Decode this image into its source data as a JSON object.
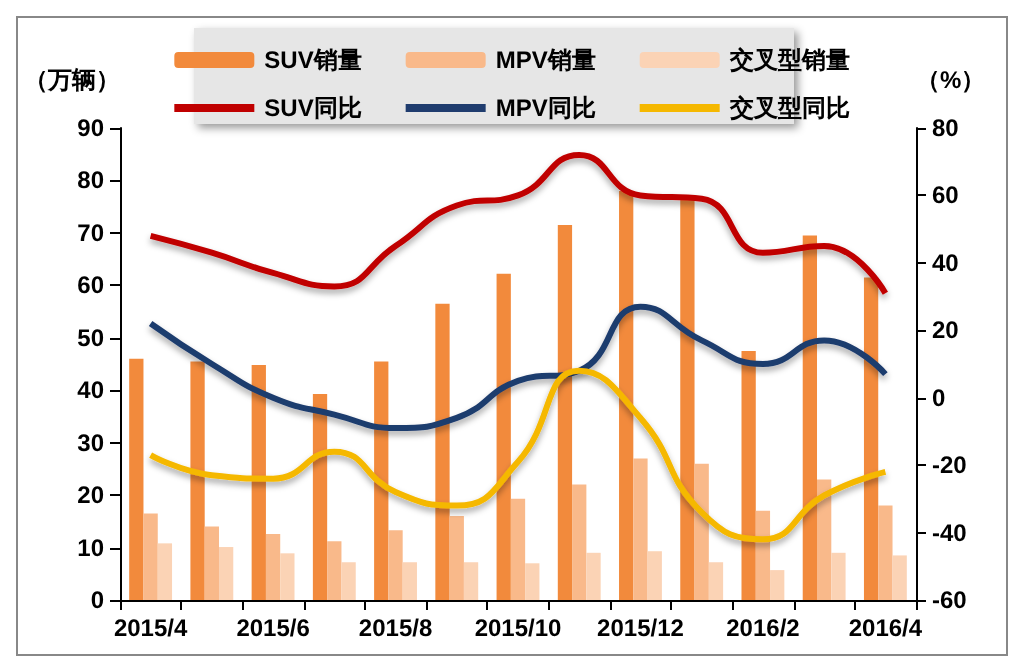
{
  "chart_data": {
    "type": "bar",
    "ylabel": "（万辆）",
    "y2label": "（%）",
    "categories": [
      "2015/4",
      null,
      "2015/6",
      null,
      "2015/8",
      null,
      "2015/10",
      null,
      "2015/12",
      null,
      "2016/2",
      null,
      "2016/4"
    ],
    "series": [
      {
        "name": "SUV销量",
        "color": "#f28a3c",
        "values": [
          46,
          45.5,
          44.8,
          39.3,
          45.5,
          56.5,
          62.2,
          71.5,
          78,
          77,
          47.5,
          69.5,
          61.5
        ]
      },
      {
        "name": "MPV销量",
        "color": "#f9b98a",
        "values": [
          16.5,
          14,
          12.6,
          11.2,
          13.3,
          16,
          19.3,
          22,
          27,
          26,
          17,
          23,
          18
        ]
      },
      {
        "name": "交叉型销量",
        "color": "#fbd3b5",
        "values": [
          10.8,
          10.1,
          8.9,
          7.2,
          7.2,
          7.2,
          7,
          9,
          9.3,
          7.2,
          5.7,
          9,
          8.5
        ]
      },
      {
        "name": "SUV同比",
        "type": "line",
        "axis": "y2",
        "color": "#c00000",
        "values": [
          48,
          43,
          37,
          33,
          45,
          57,
          60,
          72,
          60,
          59,
          43,
          45,
          31
        ]
      },
      {
        "name": "MPV同比",
        "type": "line",
        "axis": "y2",
        "color": "#1f3c6e",
        "values": [
          22,
          10,
          0,
          -5,
          -9,
          -6,
          5,
          8,
          27,
          17,
          10,
          17,
          7
        ]
      },
      {
        "name": "交叉型同比",
        "type": "line",
        "axis": "y2",
        "color": "#f5b800",
        "values": [
          -17,
          -23,
          -24,
          -16,
          -28,
          -32,
          -19,
          8,
          -6,
          -34,
          -42,
          -29,
          -22
        ]
      }
    ],
    "ylim": [
      0,
      90
    ],
    "yticks": [
      0,
      10,
      20,
      30,
      40,
      50,
      60,
      70,
      80,
      90
    ],
    "y2lim": [
      -60,
      80
    ],
    "y2ticks": [
      -60,
      -40,
      -20,
      0,
      20,
      40,
      60,
      80
    ],
    "grid": false,
    "legend": "top",
    "marker": "none"
  }
}
